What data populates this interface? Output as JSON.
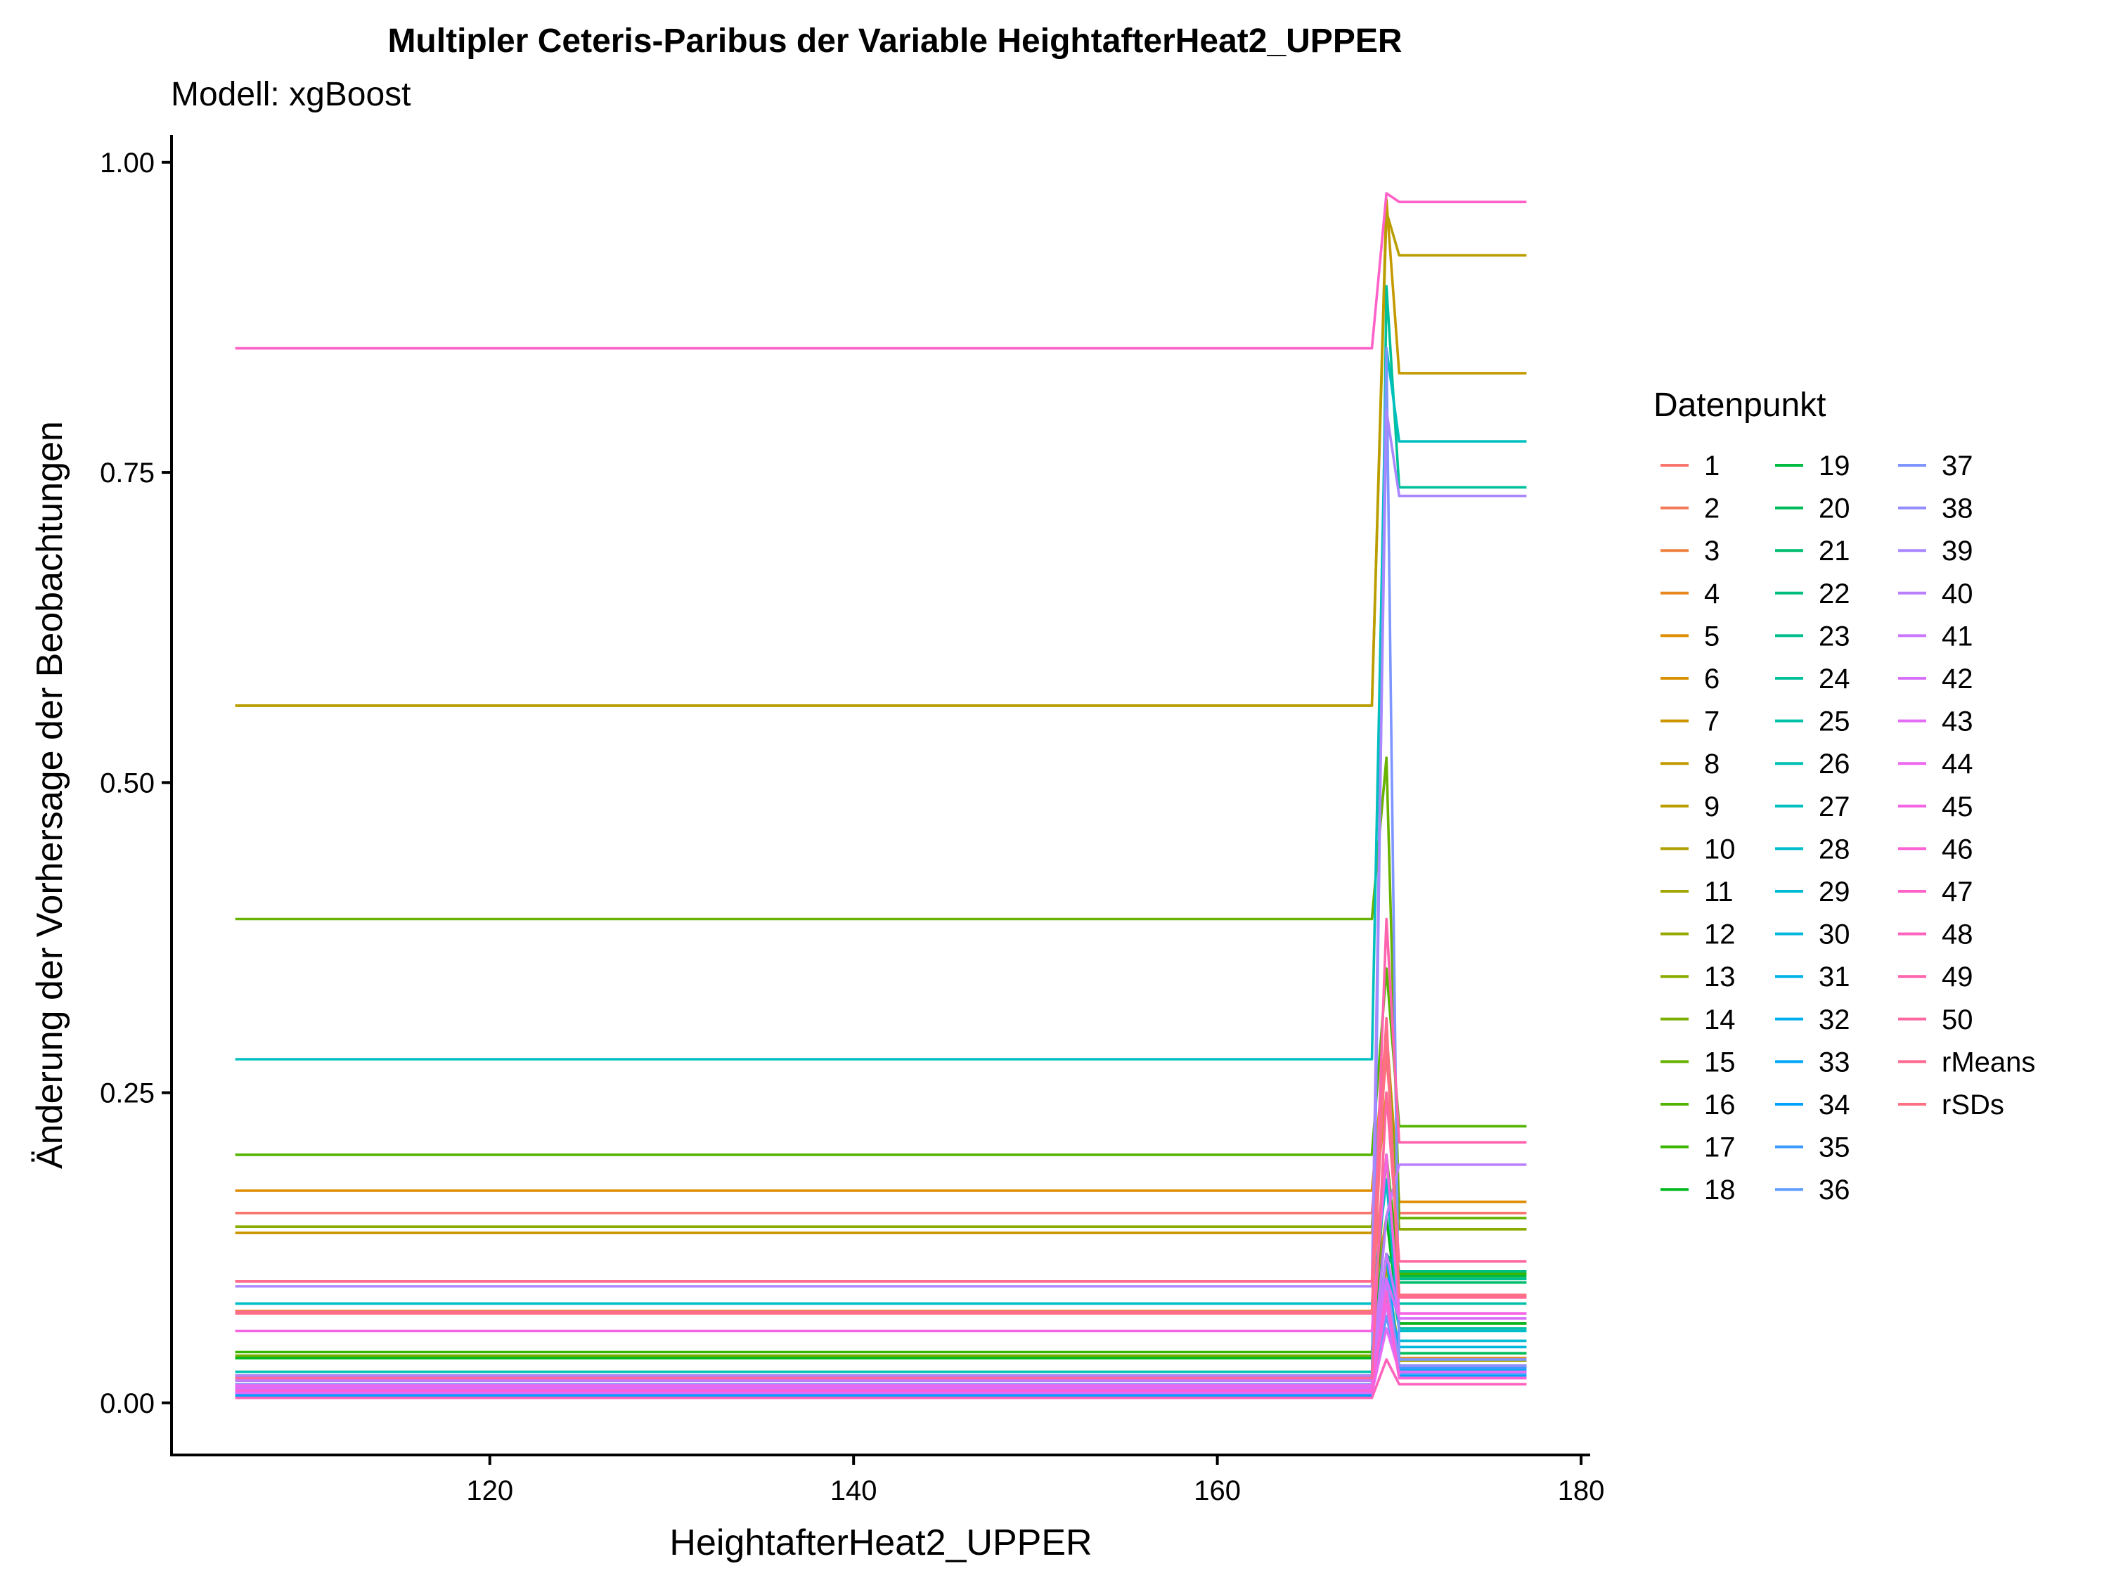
{
  "chart_data": {
    "type": "line",
    "title": "Multipler Ceteris-Paribus der Variable HeightafterHeat2_UPPER",
    "subtitle": "Modell: xgBoost",
    "xlabel": "HeightafterHeat2_UPPER",
    "ylabel": "Änderung der Vorhersage der Beobachtungen",
    "xlim": [
      102.5,
      180.5
    ],
    "ylim": [
      -0.042,
      1.022
    ],
    "x_ticks": [
      120,
      140,
      160,
      180
    ],
    "x_tick_labels": [
      "120",
      "140",
      "160",
      "180"
    ],
    "y_ticks": [
      0,
      0.25,
      0.5,
      0.75,
      1.0
    ],
    "y_tick_labels": [
      "0.00",
      "0.25",
      "0.50",
      "0.75",
      "1.00"
    ],
    "grid": false,
    "legend": {
      "title": "Datenpunkt",
      "position": "right",
      "columns": 3
    },
    "x": [
      106,
      168.5,
      169.3,
      170,
      177
    ],
    "series": [
      {
        "name": "1",
        "color": "#F8766D",
        "values": [
          0.153,
          0.153,
          0.28,
          0.153,
          0.153
        ]
      },
      {
        "name": "2",
        "color": "#F37B59",
        "values": [
          0.098,
          0.098,
          0.2,
          0.085,
          0.085
        ]
      },
      {
        "name": "3",
        "color": "#ED8141",
        "values": [
          0.074,
          0.074,
          0.15,
          0.064,
          0.064
        ]
      },
      {
        "name": "4",
        "color": "#E7861B",
        "values": [
          0.021,
          0.021,
          0.1,
          0.036,
          0.036
        ]
      },
      {
        "name": "5",
        "color": "#DF8C00",
        "values": [
          0.171,
          0.171,
          0.3,
          0.162,
          0.162
        ]
      },
      {
        "name": "6",
        "color": "#D79000",
        "values": [
          0.015,
          0.015,
          0.09,
          0.03,
          0.03
        ]
      },
      {
        "name": "7",
        "color": "#CE9500",
        "values": [
          0.137,
          0.137,
          0.25,
          0.14,
          0.14
        ]
      },
      {
        "name": "8",
        "color": "#C49A00",
        "values": [
          0.562,
          0.562,
          0.97,
          0.83,
          0.83
        ]
      },
      {
        "name": "9",
        "color": "#BA9E00",
        "values": [
          0.562,
          0.562,
          0.96,
          0.925,
          0.925
        ]
      },
      {
        "name": "10",
        "color": "#AFA100",
        "values": [
          0.02,
          0.02,
          0.11,
          0.04,
          0.04
        ]
      },
      {
        "name": "11",
        "color": "#A3A500",
        "values": [
          0.012,
          0.012,
          0.08,
          0.034,
          0.034
        ]
      },
      {
        "name": "12",
        "color": "#96A900",
        "values": [
          0.018,
          0.018,
          0.09,
          0.03,
          0.03
        ]
      },
      {
        "name": "13",
        "color": "#89AC00",
        "values": [
          0.142,
          0.142,
          0.3,
          0.14,
          0.14
        ]
      },
      {
        "name": "14",
        "color": "#79AF00",
        "values": [
          0.038,
          0.038,
          0.2,
          0.06,
          0.06
        ]
      },
      {
        "name": "15",
        "color": "#68B200",
        "values": [
          0.39,
          0.39,
          0.52,
          0.149,
          0.149
        ]
      },
      {
        "name": "16",
        "color": "#53B400",
        "values": [
          0.2,
          0.2,
          0.35,
          0.223,
          0.223
        ]
      },
      {
        "name": "17",
        "color": "#39B600",
        "values": [
          0.041,
          0.041,
          0.2,
          0.104,
          0.104
        ]
      },
      {
        "name": "18",
        "color": "#00B81F",
        "values": [
          0.036,
          0.036,
          0.15,
          0.064,
          0.064
        ]
      },
      {
        "name": "19",
        "color": "#00BA42",
        "values": [
          0.02,
          0.02,
          0.12,
          0.102,
          0.102
        ]
      },
      {
        "name": "20",
        "color": "#00BB59",
        "values": [
          0.01,
          0.01,
          0.09,
          0.04,
          0.04
        ]
      },
      {
        "name": "21",
        "color": "#00BC6C",
        "values": [
          0.015,
          0.015,
          0.1,
          0.097,
          0.097
        ]
      },
      {
        "name": "22",
        "color": "#00BE7D",
        "values": [
          0.022,
          0.022,
          0.12,
          0.106,
          0.106
        ]
      },
      {
        "name": "23",
        "color": "#00BF8C",
        "values": [
          0.012,
          0.012,
          0.08,
          0.1,
          0.1
        ]
      },
      {
        "name": "24",
        "color": "#00C09A",
        "values": [
          0.018,
          0.018,
          0.9,
          0.738,
          0.738
        ]
      },
      {
        "name": "25",
        "color": "#00C0A7",
        "values": [
          0.02,
          0.02,
          0.1,
          0.08,
          0.08
        ]
      },
      {
        "name": "26",
        "color": "#00C0B3",
        "values": [
          0.025,
          0.025,
          0.12,
          0.06,
          0.06
        ]
      },
      {
        "name": "27",
        "color": "#00BFBF",
        "values": [
          0.277,
          0.277,
          0.85,
          0.775,
          0.775
        ]
      },
      {
        "name": "28",
        "color": "#00BDCA",
        "values": [
          0.08,
          0.08,
          0.18,
          0.058,
          0.058
        ]
      },
      {
        "name": "29",
        "color": "#00BAD4",
        "values": [
          0.01,
          0.01,
          0.08,
          0.05,
          0.05
        ]
      },
      {
        "name": "30",
        "color": "#00B7DE",
        "values": [
          0.012,
          0.012,
          0.09,
          0.045,
          0.045
        ]
      },
      {
        "name": "31",
        "color": "#00B2E7",
        "values": [
          0.008,
          0.008,
          0.1,
          0.03,
          0.03
        ]
      },
      {
        "name": "32",
        "color": "#00ADEF",
        "values": [
          0.015,
          0.015,
          0.12,
          0.027,
          0.027
        ]
      },
      {
        "name": "33",
        "color": "#00A7F6",
        "values": [
          0.01,
          0.01,
          0.1,
          0.025,
          0.025
        ]
      },
      {
        "name": "34",
        "color": "#00A0FD",
        "values": [
          0.006,
          0.006,
          0.08,
          0.022,
          0.022
        ]
      },
      {
        "name": "35",
        "color": "#3B99FF",
        "values": [
          0.012,
          0.012,
          0.09,
          0.028,
          0.028
        ]
      },
      {
        "name": "36",
        "color": "#619CFF",
        "values": [
          0.008,
          0.008,
          0.07,
          0.024,
          0.024
        ]
      },
      {
        "name": "37",
        "color": "#7E96FF",
        "values": [
          0.01,
          0.01,
          0.85,
          0.035,
          0.035
        ]
      },
      {
        "name": "38",
        "color": "#958EFF",
        "values": [
          0.015,
          0.015,
          0.1,
          0.03,
          0.03
        ]
      },
      {
        "name": "39",
        "color": "#A987FF",
        "values": [
          0.094,
          0.094,
          0.8,
          0.731,
          0.731
        ]
      },
      {
        "name": "40",
        "color": "#BB7EFF",
        "values": [
          0.022,
          0.022,
          0.15,
          0.192,
          0.192
        ]
      },
      {
        "name": "41",
        "color": "#CA76FF",
        "values": [
          0.018,
          0.018,
          0.12,
          0.072,
          0.072
        ]
      },
      {
        "name": "42",
        "color": "#D86FFB",
        "values": [
          0.012,
          0.012,
          0.1,
          0.068,
          0.068
        ]
      },
      {
        "name": "43",
        "color": "#E46CF6",
        "values": [
          0.008,
          0.008,
          0.06,
          0.025,
          0.025
        ]
      },
      {
        "name": "44",
        "color": "#EE67EF",
        "values": [
          0.014,
          0.014,
          0.08,
          0.02,
          0.02
        ]
      },
      {
        "name": "45",
        "color": "#F564E3",
        "values": [
          0.058,
          0.058,
          0.2,
          0.072,
          0.072
        ]
      },
      {
        "name": "46",
        "color": "#FB62D6",
        "values": [
          0.01,
          0.01,
          0.09,
          0.02,
          0.02
        ]
      },
      {
        "name": "47",
        "color": "#FF61C9",
        "values": [
          0.85,
          0.85,
          0.975,
          0.968,
          0.968
        ]
      },
      {
        "name": "48",
        "color": "#FF62BC",
        "values": [
          0.004,
          0.004,
          0.035,
          0.015,
          0.015
        ]
      },
      {
        "name": "49",
        "color": "#FF64AE",
        "values": [
          0.073,
          0.073,
          0.39,
          0.21,
          0.21
        ]
      },
      {
        "name": "50",
        "color": "#FF67A0",
        "values": [
          0.02,
          0.02,
          0.25,
          0.114,
          0.114
        ]
      },
      {
        "name": "rMeans",
        "color": "#FF6A92",
        "values": [
          0.098,
          0.098,
          0.31,
          0.085,
          0.085
        ]
      },
      {
        "name": "rSDs",
        "color": "#FD6F84",
        "values": [
          0.072,
          0.072,
          0.3,
          0.087,
          0.087
        ]
      }
    ]
  }
}
